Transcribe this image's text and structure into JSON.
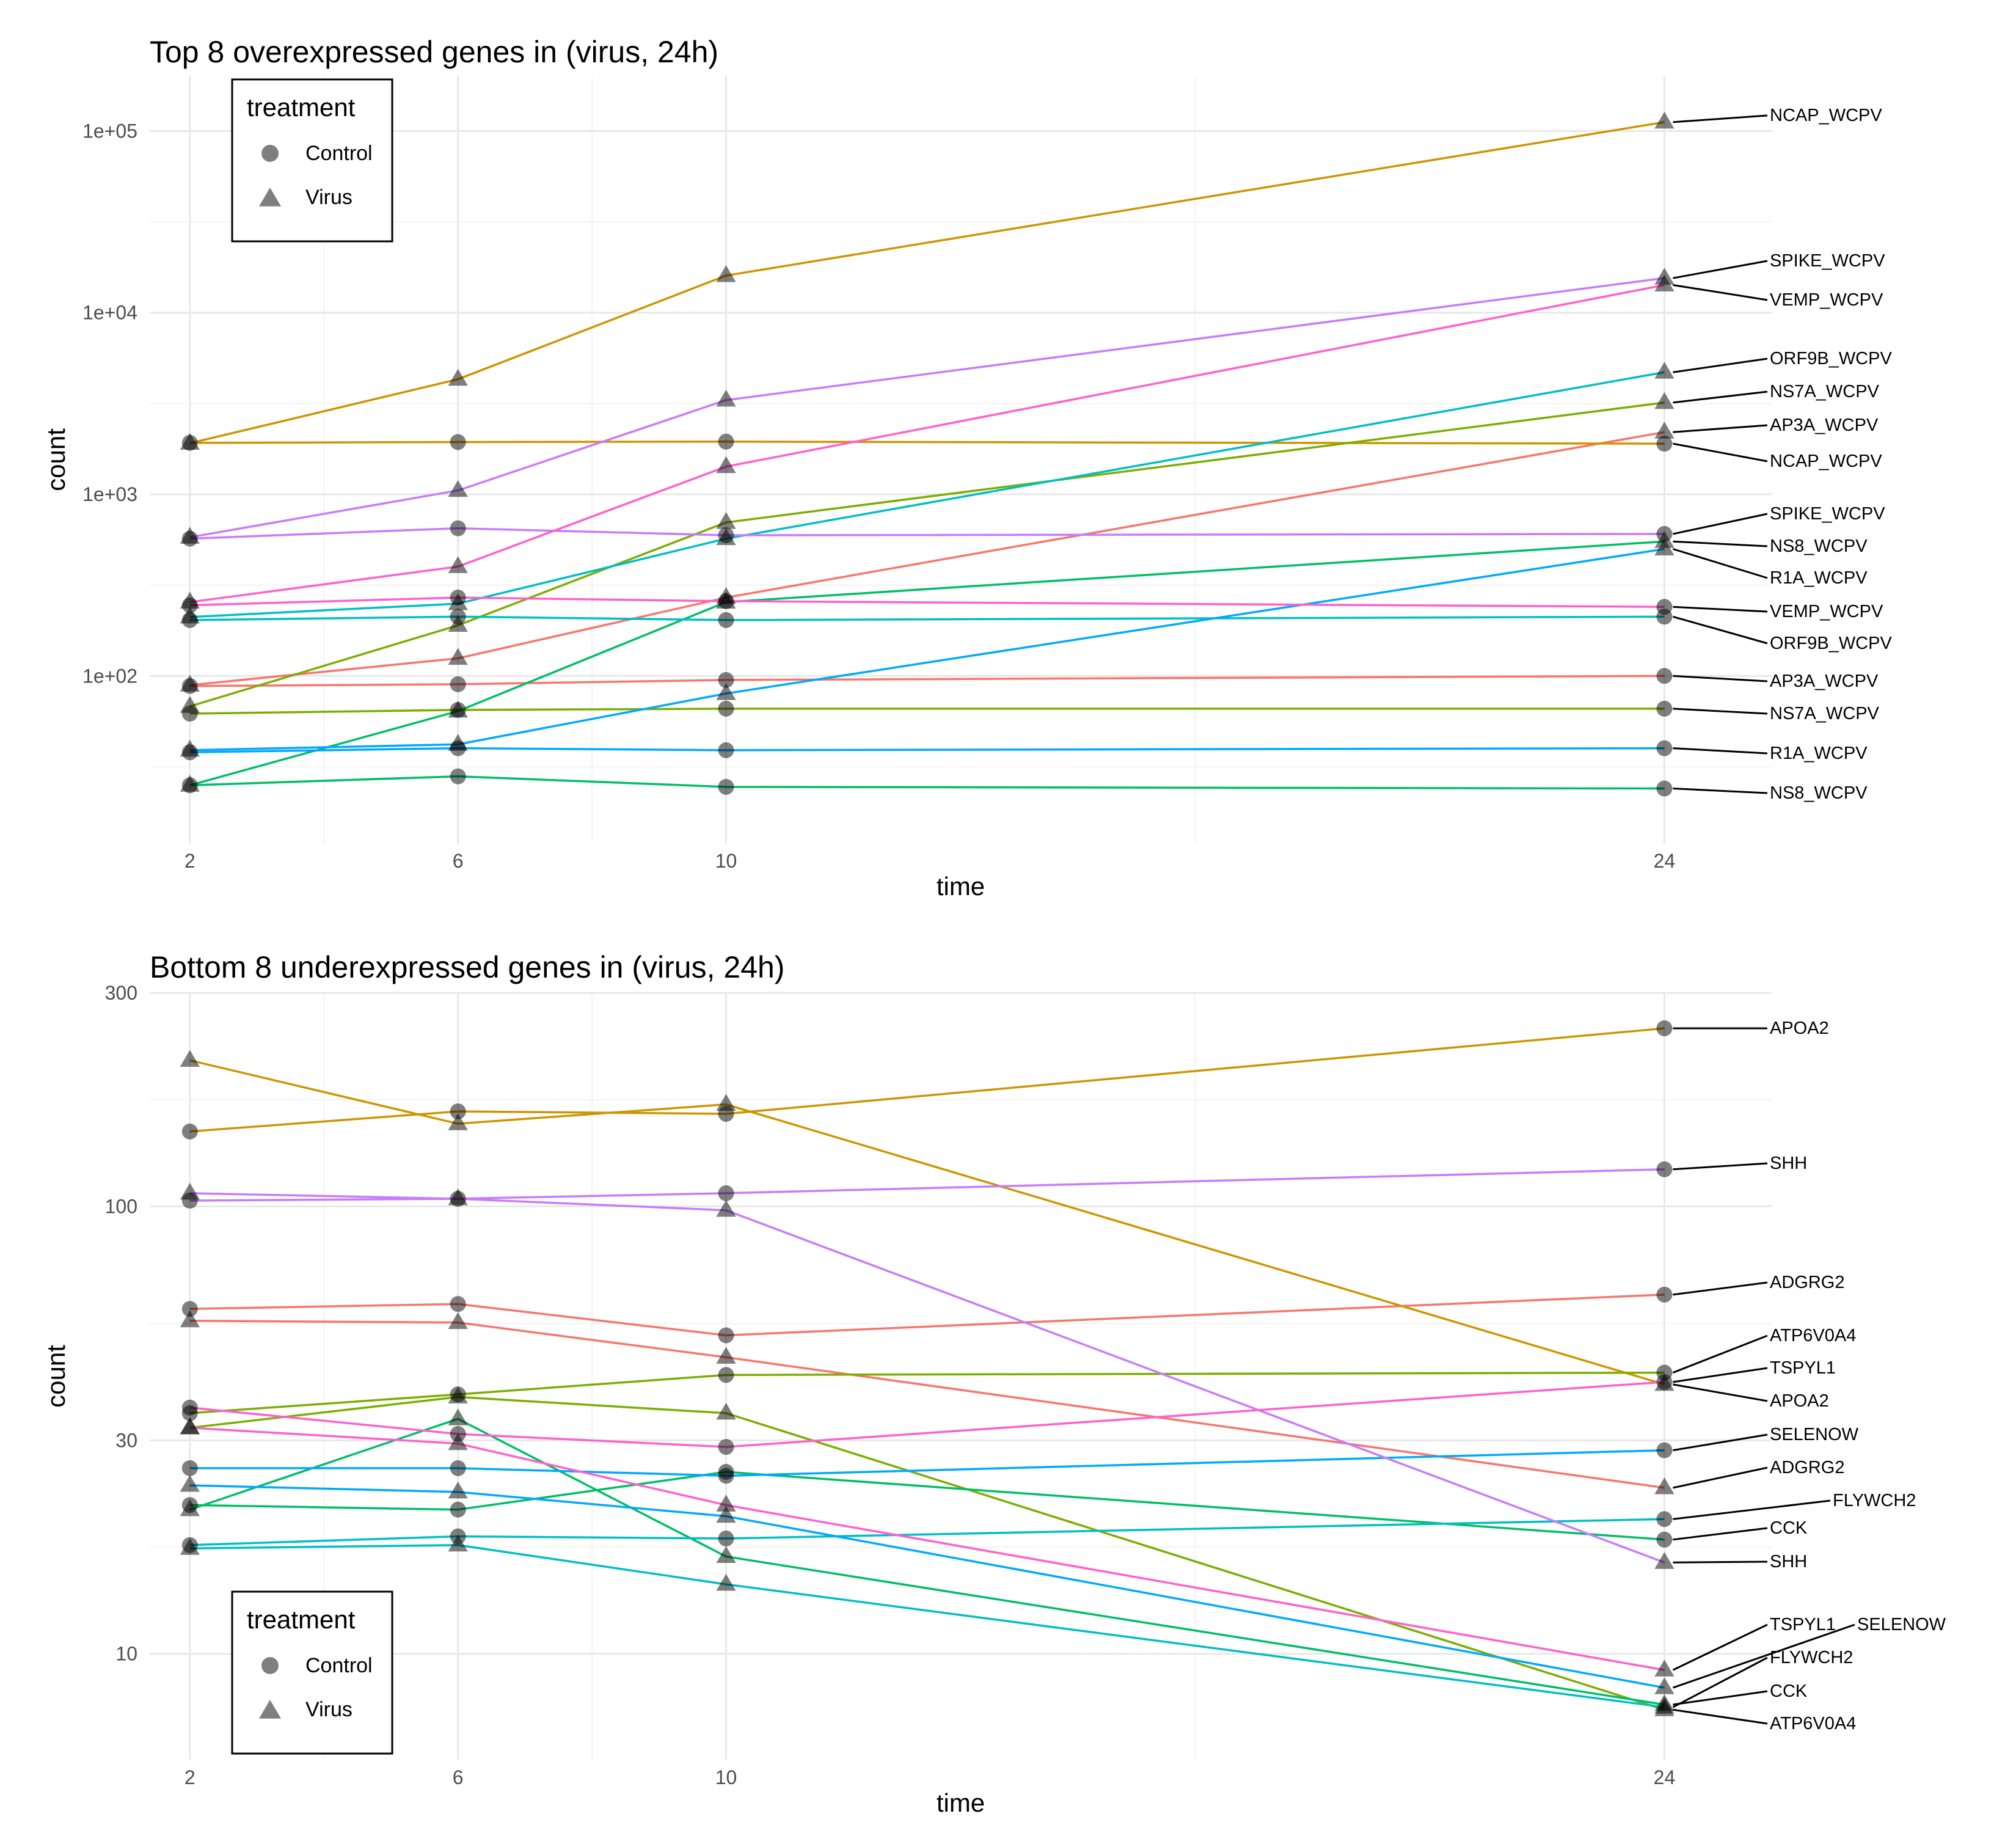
{
  "chart_data": [
    {
      "type": "line",
      "title": "Top 8 overexpressed genes in (virus, 24h)",
      "xlabel": "time",
      "ylabel": "count",
      "y_scale": "log10",
      "x_ticks": [
        2,
        6,
        10,
        24
      ],
      "x_tick_labels": [
        "2",
        "6",
        "10",
        "24"
      ],
      "y_ticks": [
        100,
        1000,
        10000,
        100000
      ],
      "y_tick_labels": [
        "1e+02",
        "1e+03",
        "1e+04",
        "1e+05"
      ],
      "xlim": [
        1.4,
        25.6
      ],
      "ylim": [
        12,
        200000
      ],
      "grid": true,
      "legend": {
        "title": "treatment",
        "placement": "top-left",
        "entries": [
          {
            "label": "Control",
            "shape": "circle"
          },
          {
            "label": "Virus",
            "shape": "triangle"
          }
        ]
      },
      "x": [
        2,
        6,
        10,
        24
      ],
      "series": [
        {
          "gene": "AP3A_WCPV",
          "treatment": "Control",
          "color": "#F8766D",
          "values": [
            88,
            90,
            95,
            100
          ]
        },
        {
          "gene": "AP3A_WCPV",
          "treatment": "Virus",
          "color": "#F8766D",
          "values": [
            89,
            125,
            270,
            2200
          ]
        },
        {
          "gene": "NCAP_WCPV",
          "treatment": "Control",
          "color": "#CD9600",
          "values": [
            1920,
            1940,
            1950,
            1900
          ]
        },
        {
          "gene": "NCAP_WCPV",
          "treatment": "Virus",
          "color": "#CD9600",
          "values": [
            1910,
            4300,
            16000,
            112000
          ]
        },
        {
          "gene": "NS7A_WCPV",
          "treatment": "Control",
          "color": "#7CAE00",
          "values": [
            62,
            65,
            66,
            66
          ]
        },
        {
          "gene": "NS7A_WCPV",
          "treatment": "Virus",
          "color": "#7CAE00",
          "values": [
            68,
            190,
            700,
            3200
          ]
        },
        {
          "gene": "NS8_WCPV",
          "treatment": "Control",
          "color": "#00BE67",
          "values": [
            25,
            28,
            24.5,
            24
          ]
        },
        {
          "gene": "NS8_WCPV",
          "treatment": "Virus",
          "color": "#00BE67",
          "values": [
            25,
            64,
            255,
            550
          ]
        },
        {
          "gene": "ORF9B_WCPV",
          "treatment": "Control",
          "color": "#00BFC4",
          "values": [
            203,
            212,
            203,
            212
          ]
        },
        {
          "gene": "ORF9B_WCPV",
          "treatment": "Virus",
          "color": "#00BFC4",
          "values": [
            211,
            250,
            570,
            4700
          ]
        },
        {
          "gene": "R1A_WCPV",
          "treatment": "Control",
          "color": "#00A9FF",
          "values": [
            38,
            40,
            39,
            40
          ]
        },
        {
          "gene": "R1A_WCPV",
          "treatment": "Virus",
          "color": "#00A9FF",
          "values": [
            39,
            42,
            80,
            500
          ]
        },
        {
          "gene": "SPIKE_WCPV",
          "treatment": "Control",
          "color": "#C77CFF",
          "values": [
            570,
            650,
            595,
            605
          ]
        },
        {
          "gene": "SPIKE_WCPV",
          "treatment": "Virus",
          "color": "#C77CFF",
          "values": [
            580,
            1050,
            3300,
            15500
          ]
        },
        {
          "gene": "VEMP_WCPV",
          "treatment": "Control",
          "color": "#FF61CC",
          "values": [
            245,
            270,
            258,
            240
          ]
        },
        {
          "gene": "VEMP_WCPV",
          "treatment": "Virus",
          "color": "#FF61CC",
          "values": [
            255,
            400,
            1420,
            14200
          ]
        }
      ],
      "labels_right": [
        "NCAP_WCPV",
        "SPIKE_WCPV",
        "VEMP_WCPV",
        "ORF9B_WCPV",
        "NS7A_WCPV",
        "AP3A_WCPV",
        "NCAP_WCPV",
        "SPIKE_WCPV",
        "NS8_WCPV",
        "R1A_WCPV",
        "VEMP_WCPV",
        "ORF9B_WCPV",
        "AP3A_WCPV",
        "NS7A_WCPV",
        "R1A_WCPV",
        "NS8_WCPV"
      ]
    },
    {
      "type": "line",
      "title": "Bottom 8 underexpressed genes in (virus, 24h)",
      "xlabel": "time",
      "ylabel": "count",
      "y_scale": "log10",
      "x_ticks": [
        2,
        6,
        10,
        24
      ],
      "x_tick_labels": [
        "2",
        "6",
        "10",
        "24"
      ],
      "y_ticks": [
        10,
        30,
        100,
        300
      ],
      "y_tick_labels": [
        "10",
        "30",
        "100",
        "300"
      ],
      "xlim": [
        1.4,
        25.6
      ],
      "ylim": [
        5.8,
        300
      ],
      "grid": true,
      "legend": {
        "title": "treatment",
        "placement": "bottom-left",
        "entries": [
          {
            "label": "Control",
            "shape": "circle"
          },
          {
            "label": "Virus",
            "shape": "triangle"
          }
        ]
      },
      "x": [
        2,
        6,
        10,
        24
      ],
      "series": [
        {
          "gene": "ADGRG2",
          "treatment": "Control",
          "color": "#F8766D",
          "values": [
            59,
            60.5,
            51.5,
            63.5
          ]
        },
        {
          "gene": "ADGRG2",
          "treatment": "Virus",
          "color": "#F8766D",
          "values": [
            55.5,
            55,
            46,
            23.5
          ]
        },
        {
          "gene": "APOA2",
          "treatment": "Control",
          "color": "#CD9600",
          "values": [
            147,
            163,
            161,
            250
          ]
        },
        {
          "gene": "APOA2",
          "treatment": "Virus",
          "color": "#CD9600",
          "values": [
            212,
            153,
            169,
            40
          ]
        },
        {
          "gene": "ATP6V0A4",
          "treatment": "Control",
          "color": "#7CAE00",
          "values": [
            34.5,
            38,
            42,
            42.5
          ]
        },
        {
          "gene": "ATP6V0A4",
          "treatment": "Virus",
          "color": "#7CAE00",
          "values": [
            32,
            37.5,
            34.5,
            7.5
          ]
        },
        {
          "gene": "CCK",
          "treatment": "Control",
          "color": "#00BE67",
          "values": [
            21.5,
            21,
            25.5,
            18
          ]
        },
        {
          "gene": "CCK",
          "treatment": "Virus",
          "color": "#00BE67",
          "values": [
            21,
            33.5,
            16.5,
            7.7
          ]
        },
        {
          "gene": "FLYWCH2",
          "treatment": "Control",
          "color": "#00BFC4",
          "values": [
            17.5,
            18.3,
            18.1,
            20
          ]
        },
        {
          "gene": "FLYWCH2",
          "treatment": "Virus",
          "color": "#00BFC4",
          "values": [
            17.2,
            17.5,
            14.3,
            7.6
          ]
        },
        {
          "gene": "SELENOW",
          "treatment": "Control",
          "color": "#00A9FF",
          "values": [
            26,
            26,
            25,
            28.5
          ]
        },
        {
          "gene": "SELENOW",
          "treatment": "Virus",
          "color": "#00A9FF",
          "values": [
            23.8,
            23,
            20.3,
            8.4
          ]
        },
        {
          "gene": "SHH",
          "treatment": "Control",
          "color": "#C77CFF",
          "values": [
            103,
            104,
            107,
            121
          ]
        },
        {
          "gene": "SHH",
          "treatment": "Virus",
          "color": "#C77CFF",
          "values": [
            107,
            104,
            98,
            16
          ]
        },
        {
          "gene": "TSPYL1",
          "treatment": "Control",
          "color": "#FF61CC",
          "values": [
            35.5,
            31,
            29,
            40.5
          ]
        },
        {
          "gene": "TSPYL1",
          "treatment": "Virus",
          "color": "#FF61CC",
          "values": [
            32,
            29.5,
            21.5,
            9.2
          ]
        }
      ],
      "labels_right": [
        "APOA2",
        "SHH",
        "ADGRG2",
        "ATP6V0A4",
        "TSPYL1",
        "APOA2",
        "SELENOW",
        "ADGRG2",
        "FLYWCH2",
        "CCK",
        "SHH",
        "TSPYL1",
        "SELENOW",
        "FLYWCH2",
        "CCK",
        "ATP6V0A4"
      ]
    }
  ]
}
